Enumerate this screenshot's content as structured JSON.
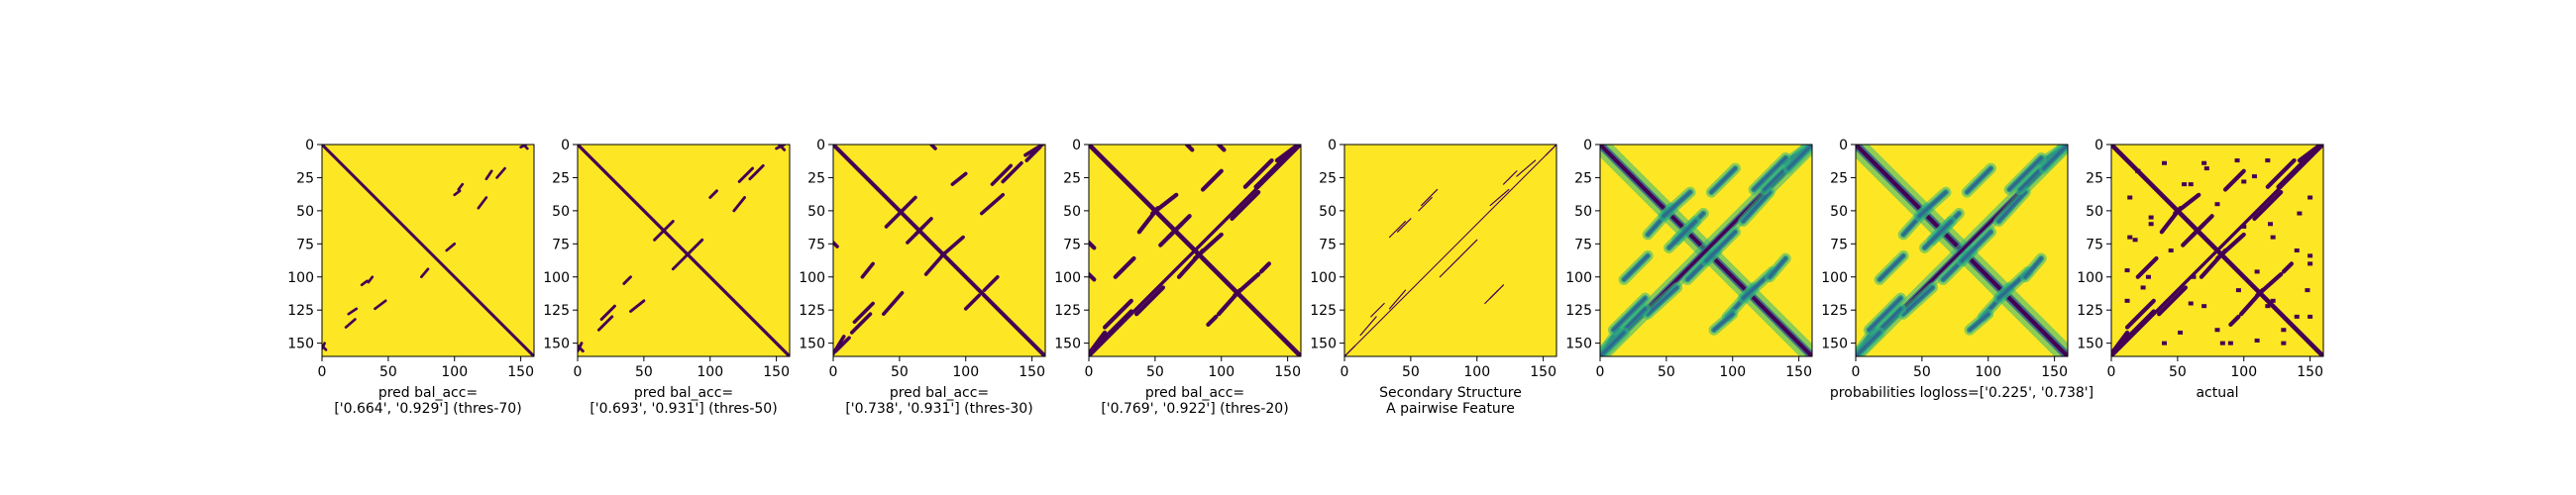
{
  "chart_data": [
    {
      "type": "heatmap",
      "title": "",
      "xlabel": "pred bal_acc=\n['0.664', '0.929'] (thres-70)",
      "ylabel": "",
      "xlim": [
        0,
        160
      ],
      "ylim": [
        160,
        0
      ],
      "xticks": [
        0,
        50,
        100,
        150
      ],
      "yticks": [
        0,
        25,
        50,
        75,
        100,
        125,
        150
      ],
      "background_value": 1,
      "mark_value": 0,
      "diagonals": [
        {
          "x0": 0,
          "x1": 160,
          "width": 2.2
        }
      ],
      "segments": [
        {
          "x0": 118,
          "y0": 48,
          "x1": 124,
          "y1": 40
        },
        {
          "x0": 132,
          "y0": 25,
          "x1": 138,
          "y1": 18
        },
        {
          "x0": 150,
          "y0": 2,
          "x1": 154,
          "y1": 0
        },
        {
          "x0": 100,
          "y0": 38,
          "x1": 104,
          "y1": 35
        },
        {
          "x0": 75,
          "y0": 100,
          "x1": 80,
          "y1": 94
        },
        {
          "x0": 30,
          "y0": 106,
          "x1": 34,
          "y1": 103
        },
        {
          "x0": 20,
          "y0": 128,
          "x1": 26,
          "y1": 124
        },
        {
          "x0": 0,
          "y0": 152,
          "x1": 3,
          "y1": 155
        }
      ]
    },
    {
      "type": "heatmap",
      "title": "",
      "xlabel": "pred bal_acc=\n['0.693', '0.931'] (thres-50)",
      "ylabel": "",
      "xlim": [
        0,
        160
      ],
      "ylim": [
        160,
        0
      ],
      "xticks": [
        0,
        50,
        100,
        150
      ],
      "yticks": [
        0,
        25,
        50,
        75,
        100,
        125,
        150
      ],
      "background_value": 1,
      "mark_value": 0,
      "diagonals": [
        {
          "x0": 0,
          "x1": 160,
          "width": 2.4
        }
      ],
      "segments": [
        {
          "x0": 118,
          "y0": 50,
          "x1": 126,
          "y1": 40
        },
        {
          "x0": 130,
          "y0": 26,
          "x1": 140,
          "y1": 16
        },
        {
          "x0": 150,
          "y0": 3,
          "x1": 156,
          "y1": 0
        },
        {
          "x0": 64,
          "y0": 66,
          "x1": 72,
          "y1": 58
        },
        {
          "x0": 72,
          "y0": 94,
          "x1": 82,
          "y1": 84
        },
        {
          "x0": 100,
          "y0": 40,
          "x1": 105,
          "y1": 35
        },
        {
          "x0": 18,
          "y0": 132,
          "x1": 28,
          "y1": 122
        },
        {
          "x0": 0,
          "y0": 152,
          "x1": 4,
          "y1": 156
        }
      ]
    },
    {
      "type": "heatmap",
      "title": "",
      "xlabel": "pred bal_acc=\n['0.738', '0.931'] (thres-30)",
      "ylabel": "",
      "xlim": [
        0,
        160
      ],
      "ylim": [
        160,
        0
      ],
      "xticks": [
        0,
        50,
        100,
        150
      ],
      "yticks": [
        0,
        25,
        50,
        75,
        100,
        125,
        150
      ],
      "background_value": 1,
      "mark_value": 0,
      "diagonals": [
        {
          "x0": 0,
          "x1": 160,
          "width": 3
        }
      ],
      "segments": [
        {
          "x0": 112,
          "y0": 52,
          "x1": 128,
          "y1": 38
        },
        {
          "x0": 128,
          "y0": 28,
          "x1": 142,
          "y1": 14
        },
        {
          "x0": 145,
          "y0": 8,
          "x1": 158,
          "y1": 0
        },
        {
          "x0": 40,
          "y0": 62,
          "x1": 52,
          "y1": 50
        },
        {
          "x0": 62,
          "y0": 68,
          "x1": 74,
          "y1": 56
        },
        {
          "x0": 70,
          "y0": 98,
          "x1": 84,
          "y1": 82
        },
        {
          "x0": 90,
          "y0": 30,
          "x1": 100,
          "y1": 22
        },
        {
          "x0": 100,
          "y0": 124,
          "x1": 110,
          "y1": 114
        },
        {
          "x0": 16,
          "y0": 134,
          "x1": 30,
          "y1": 120
        },
        {
          "x0": 2,
          "y0": 156,
          "x1": 12,
          "y1": 146
        },
        {
          "x0": 0,
          "y0": 74,
          "x1": 3,
          "y1": 77
        }
      ]
    },
    {
      "type": "heatmap",
      "title": "",
      "xlabel": "pred bal_acc=\n['0.769', '0.922'] (thres-20)",
      "ylabel": "",
      "xlim": [
        0,
        160
      ],
      "ylim": [
        160,
        0
      ],
      "xticks": [
        0,
        50,
        100,
        150
      ],
      "yticks": [
        0,
        25,
        50,
        75,
        100,
        125,
        150
      ],
      "background_value": 1,
      "mark_value": 0,
      "diagonals": [
        {
          "x0": 0,
          "x1": 160,
          "width": 3.5
        },
        {
          "x0": 0,
          "x1": 160,
          "width": 2.5,
          "anti": true
        }
      ],
      "segments": [
        {
          "x0": 108,
          "y0": 56,
          "x1": 128,
          "y1": 36
        },
        {
          "x0": 126,
          "y0": 32,
          "x1": 146,
          "y1": 12
        },
        {
          "x0": 142,
          "y0": 12,
          "x1": 158,
          "y1": 0
        },
        {
          "x0": 38,
          "y0": 66,
          "x1": 52,
          "y1": 48
        },
        {
          "x0": 60,
          "y0": 70,
          "x1": 76,
          "y1": 54
        },
        {
          "x0": 68,
          "y0": 100,
          "x1": 86,
          "y1": 80
        },
        {
          "x0": 86,
          "y0": 34,
          "x1": 100,
          "y1": 20
        },
        {
          "x0": 98,
          "y0": 128,
          "x1": 114,
          "y1": 110
        },
        {
          "x0": 12,
          "y0": 138,
          "x1": 32,
          "y1": 118
        },
        {
          "x0": 0,
          "y0": 158,
          "x1": 16,
          "y1": 142
        },
        {
          "x0": 0,
          "y0": 74,
          "x1": 4,
          "y1": 78
        },
        {
          "x0": 0,
          "y0": 98,
          "x1": 4,
          "y1": 102
        },
        {
          "x0": 130,
          "y0": 96,
          "x1": 136,
          "y1": 90
        }
      ]
    },
    {
      "type": "heatmap",
      "title": "",
      "xlabel": "Secondary Structure\nA pairwise Feature",
      "ylabel": "",
      "xlim": [
        0,
        160
      ],
      "ylim": [
        160,
        0
      ],
      "xticks": [
        0,
        50,
        100,
        150
      ],
      "yticks": [
        0,
        25,
        50,
        75,
        100,
        125,
        150
      ],
      "background_value": 1,
      "mark_value": 0,
      "diagonals": [
        {
          "x0": 0,
          "x1": 160,
          "width": 0.8,
          "anti": true
        }
      ],
      "segments": [
        {
          "x0": 40,
          "y0": 66,
          "x1": 50,
          "y1": 56
        },
        {
          "x0": 58,
          "y0": 46,
          "x1": 70,
          "y1": 34
        },
        {
          "x0": 110,
          "y0": 46,
          "x1": 124,
          "y1": 34
        },
        {
          "x0": 130,
          "y0": 24,
          "x1": 144,
          "y1": 12
        },
        {
          "x0": 72,
          "y0": 100,
          "x1": 86,
          "y1": 86
        },
        {
          "x0": 106,
          "y0": 120,
          "x1": 116,
          "y1": 110
        },
        {
          "x0": 20,
          "y0": 130,
          "x1": 30,
          "y1": 120
        },
        {
          "x0": 0,
          "y0": 160,
          "x1": 8,
          "y1": 152
        }
      ]
    },
    {
      "type": "heatmap",
      "title": "",
      "xlabel": "",
      "ylabel": "",
      "xlim": [
        0,
        160
      ],
      "ylim": [
        160,
        0
      ],
      "xticks": [
        0,
        50,
        100,
        150
      ],
      "yticks": [
        0,
        25,
        50,
        75,
        100,
        125,
        150
      ],
      "background_value": 1,
      "mark_value": 0,
      "diagonals": [
        {
          "x0": 0,
          "x1": 160,
          "width": 3,
          "soft": true
        },
        {
          "x0": 0,
          "x1": 160,
          "width": 2.5,
          "anti": true,
          "soft": true
        }
      ],
      "segments": [
        {
          "x0": 108,
          "y0": 58,
          "x1": 128,
          "y1": 36
        },
        {
          "x0": 124,
          "y0": 34,
          "x1": 146,
          "y1": 12
        },
        {
          "x0": 140,
          "y0": 14,
          "x1": 160,
          "y1": 0
        },
        {
          "x0": 36,
          "y0": 68,
          "x1": 54,
          "y1": 48
        },
        {
          "x0": 58,
          "y0": 72,
          "x1": 78,
          "y1": 52
        },
        {
          "x0": 66,
          "y0": 102,
          "x1": 88,
          "y1": 80
        },
        {
          "x0": 84,
          "y0": 36,
          "x1": 102,
          "y1": 18
        },
        {
          "x0": 96,
          "y0": 130,
          "x1": 116,
          "y1": 108
        },
        {
          "x0": 10,
          "y0": 140,
          "x1": 34,
          "y1": 116
        },
        {
          "x0": 0,
          "y0": 160,
          "x1": 18,
          "y1": 142
        },
        {
          "x0": 128,
          "y0": 100,
          "x1": 140,
          "y1": 86
        }
      ]
    },
    {
      "type": "heatmap",
      "title": "",
      "xlabel": "probabilities logloss=['0.225', '0.738']",
      "ylabel": "",
      "xlim": [
        0,
        160
      ],
      "ylim": [
        160,
        0
      ],
      "xticks": [
        0,
        50,
        100,
        150
      ],
      "yticks": [
        0,
        25,
        50,
        75,
        100,
        125,
        150
      ],
      "background_value": 1,
      "mark_value": 0,
      "diagonals": [
        {
          "x0": 0,
          "x1": 160,
          "width": 3.2,
          "soft": true
        },
        {
          "x0": 0,
          "x1": 160,
          "width": 2.2,
          "anti": true,
          "soft": true
        }
      ],
      "segments": [
        {
          "x0": 108,
          "y0": 58,
          "x1": 128,
          "y1": 36
        },
        {
          "x0": 124,
          "y0": 34,
          "x1": 146,
          "y1": 12
        },
        {
          "x0": 140,
          "y0": 14,
          "x1": 160,
          "y1": 0
        },
        {
          "x0": 36,
          "y0": 68,
          "x1": 54,
          "y1": 48
        },
        {
          "x0": 58,
          "y0": 72,
          "x1": 78,
          "y1": 52
        },
        {
          "x0": 66,
          "y0": 102,
          "x1": 88,
          "y1": 80
        },
        {
          "x0": 84,
          "y0": 36,
          "x1": 102,
          "y1": 18
        },
        {
          "x0": 96,
          "y0": 130,
          "x1": 116,
          "y1": 108
        },
        {
          "x0": 10,
          "y0": 140,
          "x1": 34,
          "y1": 116
        },
        {
          "x0": 0,
          "y0": 160,
          "x1": 18,
          "y1": 142
        },
        {
          "x0": 128,
          "y0": 100,
          "x1": 140,
          "y1": 86
        }
      ]
    },
    {
      "type": "heatmap",
      "title": "",
      "xlabel": "actual",
      "ylabel": "",
      "xlim": [
        0,
        160
      ],
      "ylim": [
        160,
        0
      ],
      "xticks": [
        0,
        50,
        100,
        150
      ],
      "yticks": [
        0,
        25,
        50,
        75,
        100,
        125,
        150
      ],
      "background_value": 1,
      "mark_value": 0,
      "diagonals": [
        {
          "x0": 0,
          "x1": 160,
          "width": 3.5
        },
        {
          "x0": 0,
          "x1": 160,
          "width": 2.5,
          "anti": true
        }
      ],
      "segments": [
        {
          "x0": 108,
          "y0": 56,
          "x1": 128,
          "y1": 36
        },
        {
          "x0": 126,
          "y0": 32,
          "x1": 146,
          "y1": 12
        },
        {
          "x0": 142,
          "y0": 12,
          "x1": 158,
          "y1": 0
        },
        {
          "x0": 38,
          "y0": 66,
          "x1": 52,
          "y1": 48
        },
        {
          "x0": 60,
          "y0": 70,
          "x1": 76,
          "y1": 54
        },
        {
          "x0": 68,
          "y0": 100,
          "x1": 86,
          "y1": 80
        },
        {
          "x0": 86,
          "y0": 34,
          "x1": 100,
          "y1": 20
        },
        {
          "x0": 98,
          "y0": 128,
          "x1": 114,
          "y1": 110
        },
        {
          "x0": 12,
          "y0": 138,
          "x1": 32,
          "y1": 118
        },
        {
          "x0": 0,
          "y0": 158,
          "x1": 16,
          "y1": 142
        },
        {
          "x0": 130,
          "y0": 96,
          "x1": 136,
          "y1": 90
        }
      ],
      "blobs": [
        [
          20,
          20
        ],
        [
          40,
          14
        ],
        [
          60,
          30
        ],
        [
          95,
          12
        ],
        [
          108,
          24
        ],
        [
          30,
          55
        ],
        [
          18,
          72
        ],
        [
          45,
          80
        ],
        [
          100,
          62
        ],
        [
          122,
          70
        ],
        [
          142,
          52
        ],
        [
          150,
          84
        ],
        [
          28,
          100
        ],
        [
          110,
          96
        ],
        [
          148,
          110
        ],
        [
          60,
          120
        ],
        [
          80,
          140
        ],
        [
          40,
          150
        ],
        [
          130,
          140
        ],
        [
          150,
          130
        ],
        [
          12,
          118
        ],
        [
          70,
          14
        ],
        [
          90,
          150
        ],
        [
          118,
          122
        ]
      ]
    }
  ],
  "colors": {
    "high": "#fde725",
    "low": "#440154",
    "mid_green": "#35b779",
    "mid_teal": "#21918c",
    "mid_blue": "#31688e",
    "frame": "#000000"
  }
}
